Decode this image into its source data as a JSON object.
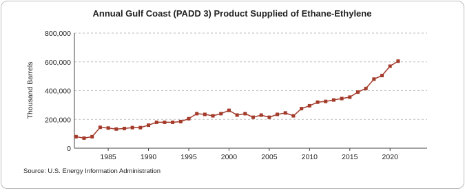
{
  "chart_data": {
    "type": "line",
    "title": "Annual Gulf Coast (PADD 3) Product Supplied of Ethane-Ethylene",
    "y_label": "Thousand Barrels",
    "source": "Source: U.S. Energy Information Administration",
    "x": [
      1981,
      1982,
      1983,
      1984,
      1985,
      1986,
      1987,
      1988,
      1989,
      1990,
      1991,
      1992,
      1993,
      1994,
      1995,
      1996,
      1997,
      1998,
      1999,
      2000,
      2001,
      2002,
      2003,
      2004,
      2005,
      2006,
      2007,
      2008,
      2009,
      2010,
      2011,
      2012,
      2013,
      2014,
      2015,
      2016,
      2017,
      2018,
      2019,
      2020,
      2021
    ],
    "series": [
      {
        "name": "Gulf Coast (PADD 3) Product Supplied of Ethane-Ethylene",
        "color": "#a33a2a",
        "values": [
          80000,
          70000,
          80000,
          145000,
          140000,
          133000,
          137000,
          143000,
          143000,
          160000,
          180000,
          180000,
          180000,
          185000,
          205000,
          240000,
          235000,
          225000,
          240000,
          263000,
          230000,
          240000,
          215000,
          230000,
          215000,
          235000,
          245000,
          225000,
          275000,
          295000,
          320000,
          325000,
          335000,
          345000,
          355000,
          390000,
          415000,
          480000,
          505000,
          570000,
          605000
        ]
      }
    ],
    "xlim": [
      1980.8,
      2024.6
    ],
    "xticks": [
      1985,
      1990,
      1995,
      2000,
      2005,
      2010,
      2015,
      2020
    ],
    "ylim": [
      0,
      800000
    ],
    "yticks": [
      0,
      {
        "value": 200000,
        "label": "200,000"
      },
      {
        "value": 400000,
        "label": "400,000"
      },
      {
        "value": 600000,
        "label": "600,000"
      },
      {
        "value": 800000,
        "label": "800,000"
      }
    ],
    "grid": true
  }
}
